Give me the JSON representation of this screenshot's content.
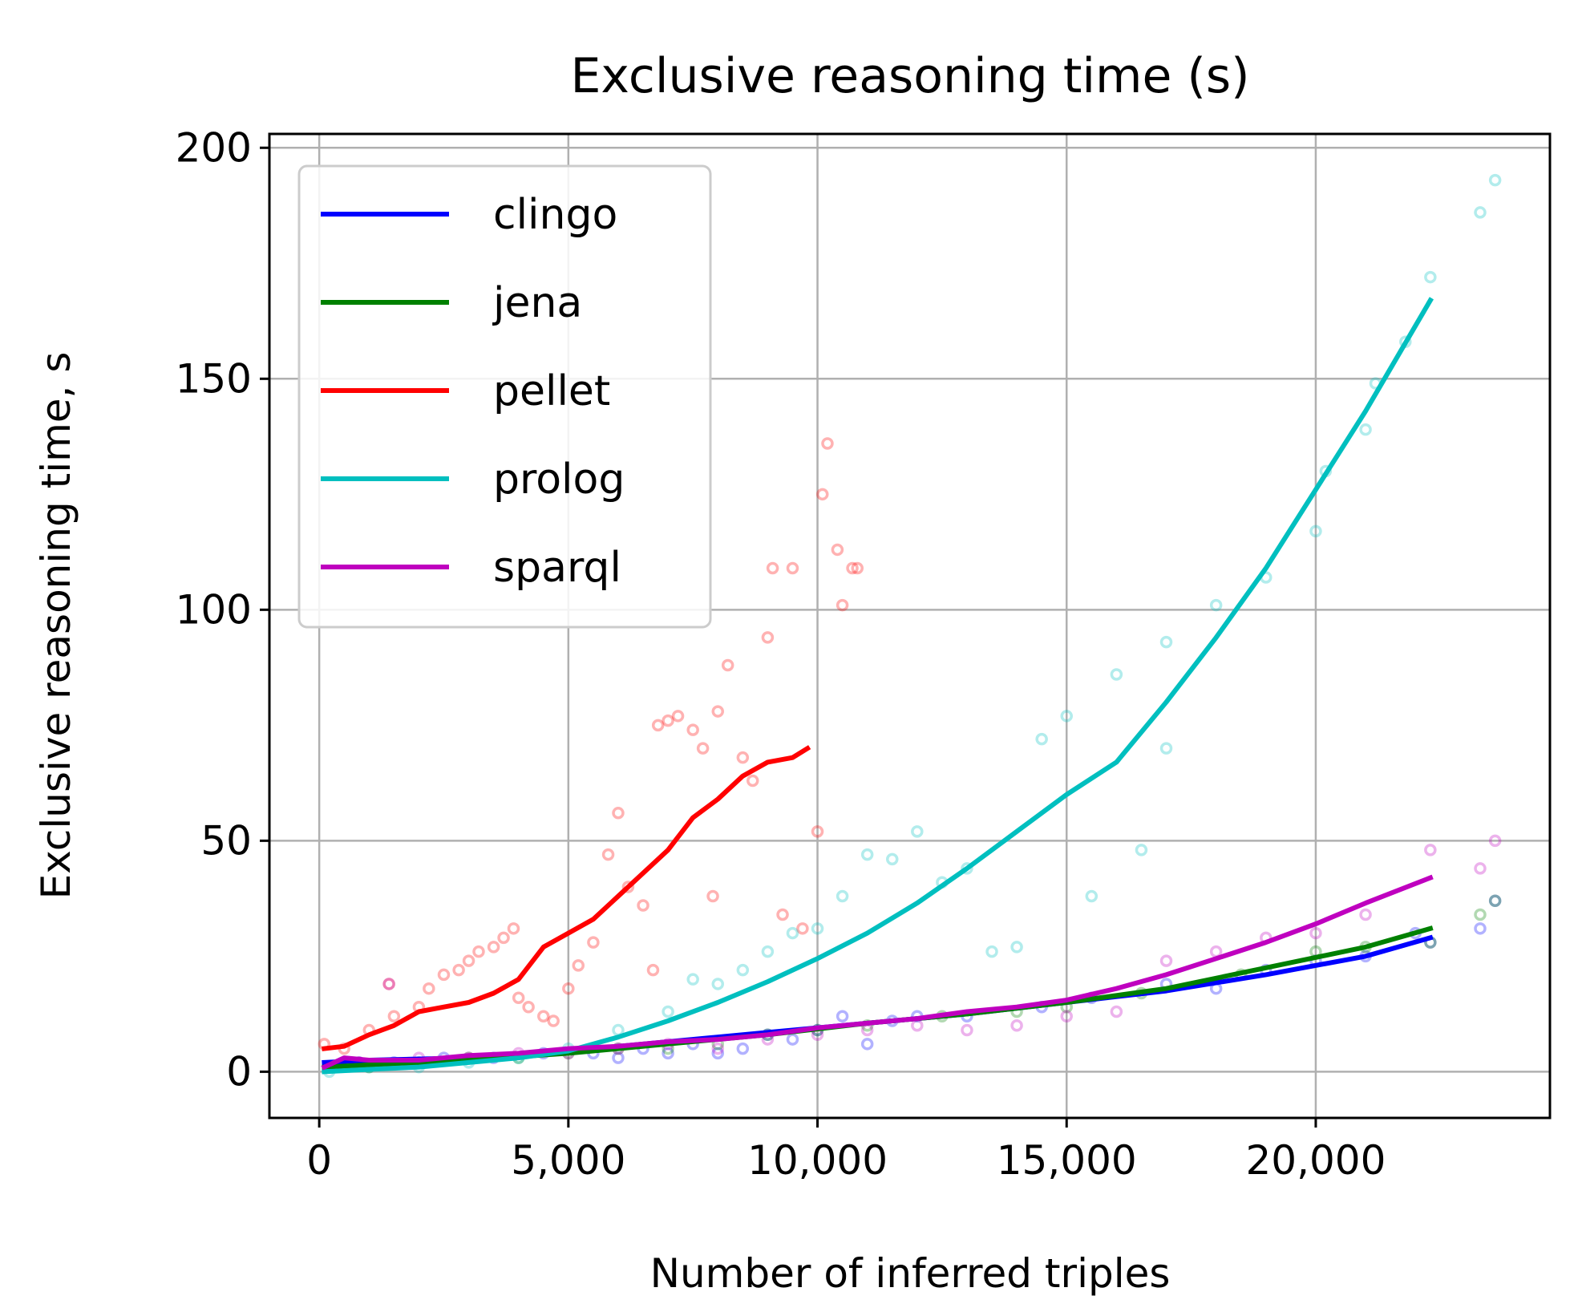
{
  "chart_data": {
    "type": "scatter",
    "title": "Exclusive reasoning time (s)",
    "xlabel": "Number of inferred triples",
    "ylabel": "Exclusive reasoning time, s",
    "xlim": [
      -1000,
      24700
    ],
    "ylim": [
      -10,
      203
    ],
    "x_ticks": [
      0,
      5000,
      10000,
      15000,
      20000
    ],
    "x_tick_labels": [
      "0",
      "5,000",
      "10,000",
      "15,000",
      "20,000"
    ],
    "y_ticks": [
      0,
      50,
      100,
      150,
      200
    ],
    "y_tick_labels": [
      "0",
      "50",
      "100",
      "150",
      "200"
    ],
    "grid": true,
    "legend_position": "top-left",
    "series": [
      {
        "name": "clingo",
        "color": "#0000ff",
        "trend": [
          [
            100,
            2
          ],
          [
            1000,
            2.5
          ],
          [
            3000,
            3
          ],
          [
            5000,
            4.5
          ],
          [
            7000,
            6.5
          ],
          [
            9000,
            8.5
          ],
          [
            11000,
            10.5
          ],
          [
            13000,
            12.5
          ],
          [
            15000,
            15
          ],
          [
            17000,
            17.5
          ],
          [
            19000,
            21
          ],
          [
            21000,
            25
          ],
          [
            22300,
            29
          ]
        ],
        "points": [
          [
            200,
            1
          ],
          [
            800,
            2
          ],
          [
            1500,
            2
          ],
          [
            2500,
            3
          ],
          [
            3500,
            3
          ],
          [
            4500,
            4
          ],
          [
            5500,
            4
          ],
          [
            6000,
            3
          ],
          [
            6500,
            5
          ],
          [
            7000,
            4
          ],
          [
            7500,
            6
          ],
          [
            8000,
            4
          ],
          [
            8500,
            5
          ],
          [
            9000,
            8
          ],
          [
            9500,
            7
          ],
          [
            10000,
            9
          ],
          [
            10500,
            12
          ],
          [
            11000,
            6
          ],
          [
            11500,
            11
          ],
          [
            12000,
            12
          ],
          [
            13000,
            12
          ],
          [
            14500,
            14
          ],
          [
            15500,
            16
          ],
          [
            17000,
            19
          ],
          [
            18000,
            18
          ],
          [
            19000,
            22
          ],
          [
            20000,
            24
          ],
          [
            21000,
            25
          ],
          [
            22000,
            30
          ],
          [
            22300,
            28
          ],
          [
            23300,
            31
          ],
          [
            23600,
            37
          ]
        ]
      },
      {
        "name": "jena",
        "color": "#008000",
        "trend": [
          [
            100,
            1
          ],
          [
            1000,
            1.5
          ],
          [
            3000,
            2.5
          ],
          [
            5000,
            4
          ],
          [
            7000,
            6
          ],
          [
            9000,
            8
          ],
          [
            11000,
            10.5
          ],
          [
            13000,
            12.5
          ],
          [
            15000,
            15
          ],
          [
            17000,
            18
          ],
          [
            19000,
            22.5
          ],
          [
            21000,
            27
          ],
          [
            22300,
            31
          ]
        ],
        "points": [
          [
            300,
            1
          ],
          [
            1000,
            1
          ],
          [
            2000,
            2
          ],
          [
            3000,
            3
          ],
          [
            4000,
            3
          ],
          [
            5000,
            4
          ],
          [
            6000,
            5
          ],
          [
            7000,
            5
          ],
          [
            8000,
            6
          ],
          [
            9000,
            8
          ],
          [
            10000,
            9
          ],
          [
            11000,
            10
          ],
          [
            12500,
            12
          ],
          [
            14000,
            13
          ],
          [
            15000,
            14
          ],
          [
            16500,
            17
          ],
          [
            18500,
            21
          ],
          [
            20000,
            26
          ],
          [
            21000,
            27
          ],
          [
            22300,
            28
          ],
          [
            23300,
            34
          ],
          [
            23600,
            37
          ]
        ]
      },
      {
        "name": "pellet",
        "color": "#ff0000",
        "trend": [
          [
            100,
            5
          ],
          [
            500,
            5.5
          ],
          [
            1000,
            8
          ],
          [
            1500,
            10
          ],
          [
            2000,
            13
          ],
          [
            2500,
            14
          ],
          [
            3000,
            15
          ],
          [
            3500,
            17
          ],
          [
            4000,
            20
          ],
          [
            4500,
            27
          ],
          [
            5000,
            30
          ],
          [
            5500,
            33
          ],
          [
            6000,
            38
          ],
          [
            6500,
            43
          ],
          [
            7000,
            48
          ],
          [
            7500,
            55
          ],
          [
            8000,
            59
          ],
          [
            8500,
            64
          ],
          [
            9000,
            67
          ],
          [
            9500,
            68
          ],
          [
            9800,
            70
          ]
        ],
        "points": [
          [
            100,
            6
          ],
          [
            500,
            5
          ],
          [
            1000,
            9
          ],
          [
            1400,
            19
          ],
          [
            1500,
            12
          ],
          [
            2000,
            14
          ],
          [
            2200,
            18
          ],
          [
            2500,
            21
          ],
          [
            2800,
            22
          ],
          [
            3000,
            24
          ],
          [
            3200,
            26
          ],
          [
            3500,
            27
          ],
          [
            3700,
            29
          ],
          [
            3900,
            31
          ],
          [
            4000,
            16
          ],
          [
            4200,
            14
          ],
          [
            4500,
            12
          ],
          [
            4700,
            11
          ],
          [
            5000,
            18
          ],
          [
            5200,
            23
          ],
          [
            5500,
            28
          ],
          [
            5800,
            47
          ],
          [
            6000,
            56
          ],
          [
            6200,
            40
          ],
          [
            6500,
            36
          ],
          [
            6700,
            22
          ],
          [
            6800,
            75
          ],
          [
            7000,
            76
          ],
          [
            7200,
            77
          ],
          [
            7500,
            74
          ],
          [
            7700,
            70
          ],
          [
            7900,
            38
          ],
          [
            8000,
            78
          ],
          [
            8200,
            88
          ],
          [
            8500,
            68
          ],
          [
            8700,
            63
          ],
          [
            9000,
            94
          ],
          [
            9100,
            109
          ],
          [
            9300,
            34
          ],
          [
            9500,
            109
          ],
          [
            9700,
            31
          ],
          [
            10000,
            52
          ],
          [
            10100,
            125
          ],
          [
            10200,
            136
          ],
          [
            10400,
            113
          ],
          [
            10500,
            101
          ],
          [
            10700,
            109
          ],
          [
            10800,
            109
          ]
        ]
      },
      {
        "name": "prolog",
        "color": "#00bfbf",
        "trend": [
          [
            100,
            0
          ],
          [
            1000,
            0.5
          ],
          [
            2000,
            1
          ],
          [
            3000,
            2
          ],
          [
            4000,
            3
          ],
          [
            5000,
            4.5
          ],
          [
            6000,
            7.5
          ],
          [
            7000,
            11
          ],
          [
            8000,
            15
          ],
          [
            9000,
            19.5
          ],
          [
            10000,
            24.5
          ],
          [
            11000,
            30
          ],
          [
            12000,
            36.5
          ],
          [
            13000,
            44
          ],
          [
            14000,
            52
          ],
          [
            15000,
            60
          ],
          [
            16000,
            67
          ],
          [
            17000,
            80
          ],
          [
            18000,
            94
          ],
          [
            19000,
            109
          ],
          [
            20000,
            126
          ],
          [
            21000,
            143
          ],
          [
            22300,
            167
          ]
        ],
        "points": [
          [
            200,
            0
          ],
          [
            1000,
            1
          ],
          [
            2000,
            1
          ],
          [
            3000,
            2
          ],
          [
            4000,
            3
          ],
          [
            5000,
            5
          ],
          [
            6000,
            9
          ],
          [
            7000,
            13
          ],
          [
            7500,
            20
          ],
          [
            8000,
            19
          ],
          [
            8500,
            22
          ],
          [
            9000,
            26
          ],
          [
            9500,
            30
          ],
          [
            10000,
            31
          ],
          [
            10500,
            38
          ],
          [
            11000,
            47
          ],
          [
            11500,
            46
          ],
          [
            12000,
            52
          ],
          [
            12500,
            41
          ],
          [
            13000,
            44
          ],
          [
            13500,
            26
          ],
          [
            14000,
            27
          ],
          [
            14500,
            72
          ],
          [
            15000,
            77
          ],
          [
            15500,
            38
          ],
          [
            16000,
            86
          ],
          [
            16500,
            48
          ],
          [
            17000,
            93
          ],
          [
            17000,
            70
          ],
          [
            18000,
            101
          ],
          [
            19000,
            107
          ],
          [
            20000,
            117
          ],
          [
            20200,
            130
          ],
          [
            21000,
            139
          ],
          [
            21200,
            149
          ],
          [
            21800,
            158
          ],
          [
            22300,
            172
          ],
          [
            23300,
            186
          ],
          [
            23600,
            193
          ]
        ]
      },
      {
        "name": "sparql",
        "color": "#bf00bf",
        "trend": [
          [
            100,
            1
          ],
          [
            500,
            3
          ],
          [
            1000,
            2.5
          ],
          [
            2000,
            2.5
          ],
          [
            3000,
            3.5
          ],
          [
            4000,
            4
          ],
          [
            5000,
            5
          ],
          [
            6000,
            5.5
          ],
          [
            7000,
            6.5
          ],
          [
            8000,
            7
          ],
          [
            9000,
            8
          ],
          [
            10000,
            9.5
          ],
          [
            11000,
            10.5
          ],
          [
            12000,
            11.5
          ],
          [
            13000,
            13
          ],
          [
            14000,
            14
          ],
          [
            15000,
            15.5
          ],
          [
            16000,
            18
          ],
          [
            17000,
            21
          ],
          [
            18000,
            24.5
          ],
          [
            19000,
            28
          ],
          [
            20000,
            32
          ],
          [
            21000,
            36.5
          ],
          [
            22300,
            42
          ]
        ],
        "points": [
          [
            200,
            1
          ],
          [
            800,
            2
          ],
          [
            1400,
            19
          ],
          [
            2000,
            3
          ],
          [
            3000,
            3
          ],
          [
            4000,
            4
          ],
          [
            5000,
            4
          ],
          [
            6000,
            5
          ],
          [
            7000,
            6
          ],
          [
            8000,
            5
          ],
          [
            9000,
            7
          ],
          [
            10000,
            8
          ],
          [
            11000,
            9
          ],
          [
            12000,
            10
          ],
          [
            13000,
            9
          ],
          [
            14000,
            10
          ],
          [
            15000,
            12
          ],
          [
            16000,
            13
          ],
          [
            17000,
            24
          ],
          [
            18000,
            26
          ],
          [
            19000,
            29
          ],
          [
            20000,
            30
          ],
          [
            21000,
            34
          ],
          [
            22300,
            48
          ],
          [
            23300,
            44
          ],
          [
            23600,
            50
          ]
        ]
      }
    ]
  }
}
